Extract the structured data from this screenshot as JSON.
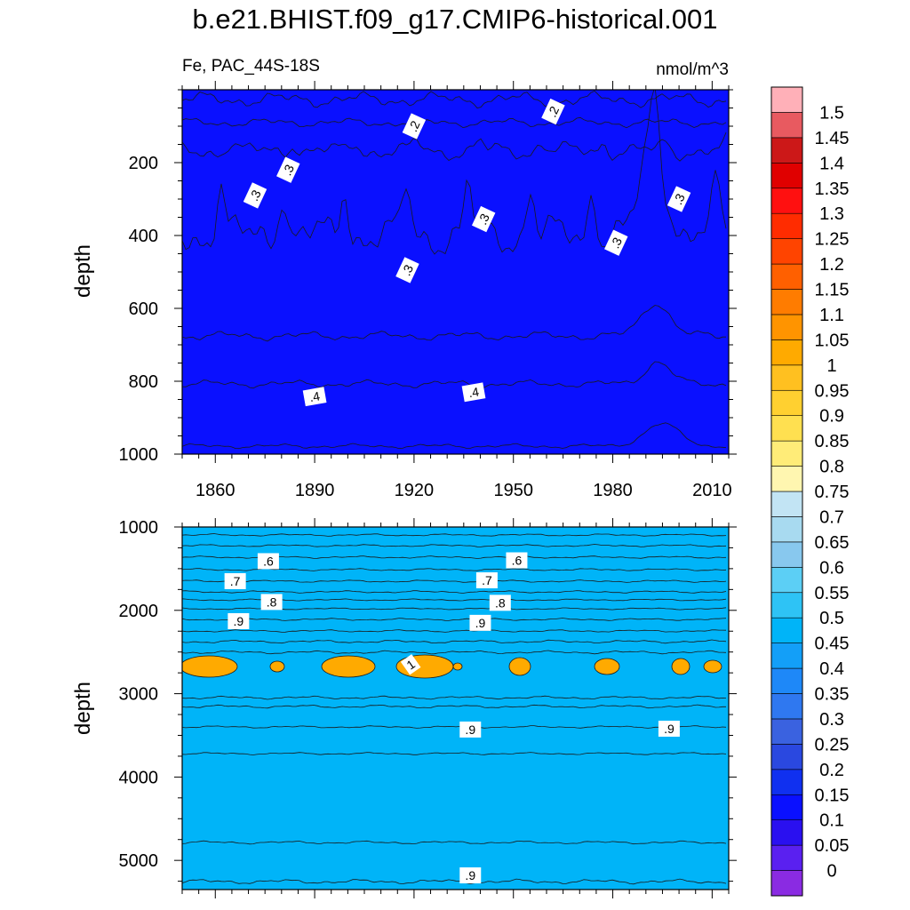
{
  "title": "b.e21.BHIST.f09_g17.CMIP6-historical.001",
  "subtitle_left": "Fe, PAC_44S-18S",
  "subtitle_right": "nmol/m^3",
  "chart_data": [
    {
      "type": "heatmap",
      "panel": "upper",
      "xlabel": "",
      "ylabel": "depth",
      "x_ticks": [
        "1860",
        "1890",
        "1920",
        "1950",
        "1980",
        "2010"
      ],
      "x_tick_values": [
        1860,
        1890,
        1920,
        1950,
        1980,
        2010
      ],
      "xlim": [
        1850,
        2015
      ],
      "y_ticks": [
        "200",
        "400",
        "600",
        "800",
        "1000"
      ],
      "y_tick_values": [
        200,
        400,
        600,
        800,
        1000
      ],
      "ylim": [
        0,
        1000
      ],
      "y_reversed": true,
      "contour_labels": [
        {
          "text": ".2",
          "x": 1920,
          "y": 100
        },
        {
          "text": ".2",
          "x": 1962,
          "y": 60
        },
        {
          "text": ".3",
          "x": 1882,
          "y": 220
        },
        {
          "text": ".3",
          "x": 1872,
          "y": 290
        },
        {
          "text": ".3",
          "x": 1941,
          "y": 355
        },
        {
          "text": ".3",
          "x": 1981,
          "y": 420
        },
        {
          "text": ".3",
          "x": 2000,
          "y": 300
        },
        {
          "text": ".3",
          "x": 1918,
          "y": 495
        },
        {
          "text": ".4",
          "x": 1890,
          "y": 842
        },
        {
          "text": ".4",
          "x": 1938,
          "y": 830
        }
      ]
    },
    {
      "type": "heatmap",
      "panel": "lower",
      "xlabel": "",
      "ylabel": "depth",
      "xlim": [
        1850,
        2015
      ],
      "y_ticks": [
        "1000",
        "2000",
        "3000",
        "4000",
        "5000"
      ],
      "y_tick_values": [
        1000,
        2000,
        3000,
        4000,
        5000
      ],
      "ylim": [
        1000,
        5350
      ],
      "y_reversed": true,
      "contour_labels": [
        {
          "text": ".6",
          "x": 1876,
          "y": 1410
        },
        {
          "text": ".6",
          "x": 1951,
          "y": 1400
        },
        {
          "text": ".7",
          "x": 1866,
          "y": 1650
        },
        {
          "text": ".7",
          "x": 1942,
          "y": 1640
        },
        {
          "text": ".8",
          "x": 1877,
          "y": 1900
        },
        {
          "text": ".8",
          "x": 1946,
          "y": 1910
        },
        {
          "text": ".9",
          "x": 1867,
          "y": 2130
        },
        {
          "text": ".9",
          "x": 1940,
          "y": 2150
        },
        {
          "text": "1",
          "x": 1919,
          "y": 2650
        },
        {
          "text": ".9",
          "x": 1937,
          "y": 3430
        },
        {
          "text": ".9",
          "x": 1997,
          "y": 3420
        },
        {
          "text": ".9",
          "x": 1937,
          "y": 5180
        }
      ]
    }
  ],
  "colorbar": {
    "labels": [
      "0",
      "0.05",
      "0.1",
      "0.15",
      "0.2",
      "0.25",
      "0.3",
      "0.35",
      "0.4",
      "0.45",
      "0.5",
      "0.55",
      "0.6",
      "0.65",
      "0.7",
      "0.75",
      "0.8",
      "0.85",
      "0.9",
      "0.95",
      "1",
      "1.05",
      "1.1",
      "1.15",
      "1.2",
      "1.25",
      "1.3",
      "1.35",
      "1.4",
      "1.45",
      "1.5"
    ],
    "colors": [
      "#8a2be2",
      "#5a20f0",
      "#2a10f0",
      "#0a10ff",
      "#1030f0",
      "#2a48e0",
      "#3a62e0",
      "#2f78f0",
      "#1e88f8",
      "#139ff8",
      "#00b4f8",
      "#2ec3f5",
      "#5ccff5",
      "#88c8ee",
      "#a8daf0",
      "#c2e4f4",
      "#fff6b0",
      "#ffec78",
      "#ffe050",
      "#ffd030",
      "#ffc020",
      "#ffaa00",
      "#ff9400",
      "#ff7c00",
      "#ff6000",
      "#ff4400",
      "#ff2c00",
      "#ff1010",
      "#e00000",
      "#cc1818",
      "#e85a60",
      "#ffb0b8"
    ]
  }
}
